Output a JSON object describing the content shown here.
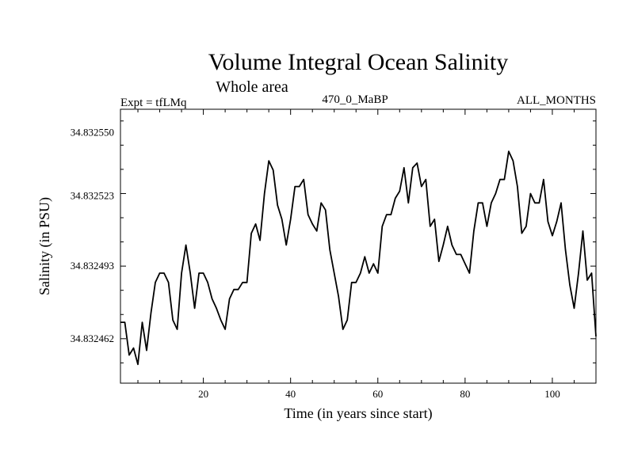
{
  "chart_data": {
    "type": "line",
    "title": "Volume Integral Ocean Salinity",
    "subtitle": "Whole area",
    "expt_label": "Expt = tfLMq",
    "run_label": "470_0_MaBP",
    "months_label": "ALL_MONTHS",
    "xlabel": "Time (in years since start)",
    "ylabel": "Salinity (in PSU)",
    "xlim": [
      1,
      110
    ],
    "ylim": [
      34.832443,
      34.83256
    ],
    "x_ticks": [
      20,
      40,
      60,
      80,
      100
    ],
    "y_ticks": [
      34.832462,
      34.832493,
      34.832523,
      34.83255
    ],
    "y_tick_labels": [
      "34.832462",
      "34.832493",
      "34.832523",
      "34.832550"
    ],
    "grid": false,
    "series": [
      {
        "name": "Salinity",
        "x": [
          1,
          2,
          3,
          4,
          5,
          6,
          7,
          8,
          9,
          10,
          11,
          12,
          13,
          14,
          15,
          16,
          17,
          18,
          19,
          20,
          21,
          22,
          23,
          24,
          25,
          26,
          27,
          28,
          29,
          30,
          31,
          32,
          33,
          34,
          35,
          36,
          37,
          38,
          39,
          40,
          41,
          42,
          43,
          44,
          45,
          46,
          47,
          48,
          49,
          50,
          51,
          52,
          53,
          54,
          55,
          56,
          57,
          58,
          59,
          60,
          61,
          62,
          63,
          64,
          65,
          66,
          67,
          68,
          69,
          70,
          71,
          72,
          73,
          74,
          75,
          76,
          77,
          78,
          79,
          80,
          81,
          82,
          83,
          84,
          85,
          86,
          87,
          88,
          89,
          90,
          91,
          92,
          93,
          94,
          95,
          96,
          97,
          98,
          99,
          100,
          101,
          102,
          103,
          104,
          105,
          106,
          107,
          108,
          109,
          110
        ],
        "values": [
          34.832469,
          34.832469,
          34.832455,
          34.832458,
          34.832451,
          34.832469,
          34.832457,
          34.832473,
          34.832486,
          34.83249,
          34.83249,
          34.832486,
          34.83247,
          34.832466,
          34.83249,
          34.832502,
          34.83249,
          34.832475,
          34.83249,
          34.83249,
          34.832486,
          34.832479,
          34.832475,
          34.83247,
          34.832466,
          34.832479,
          34.832483,
          34.832483,
          34.832486,
          34.832486,
          34.832507,
          34.832511,
          34.832504,
          34.832524,
          34.832538,
          34.832534,
          34.832519,
          34.832513,
          34.832502,
          34.832513,
          34.832527,
          34.832527,
          34.83253,
          34.832515,
          34.832511,
          34.832508,
          34.83252,
          34.832517,
          34.8325,
          34.83249,
          34.83248,
          34.832466,
          34.83247,
          34.832486,
          34.832486,
          34.83249,
          34.832497,
          34.83249,
          34.832494,
          34.83249,
          34.83251,
          34.832515,
          34.832515,
          34.832522,
          34.832525,
          34.832535,
          34.83252,
          34.832535,
          34.832537,
          34.832527,
          34.83253,
          34.83251,
          34.832513,
          34.832495,
          34.832502,
          34.83251,
          34.832502,
          34.832498,
          34.832498,
          34.832494,
          34.83249,
          34.832508,
          34.83252,
          34.83252,
          34.83251,
          34.83252,
          34.832524,
          34.83253,
          34.83253,
          34.832542,
          34.832538,
          34.832527,
          34.832507,
          34.83251,
          34.832524,
          34.83252,
          34.83252,
          34.83253,
          34.832512,
          34.832506,
          34.832512,
          34.83252,
          34.8325,
          34.832485,
          34.832475,
          34.83249,
          34.832508,
          34.832487,
          34.83249,
          34.832463
        ]
      }
    ]
  }
}
